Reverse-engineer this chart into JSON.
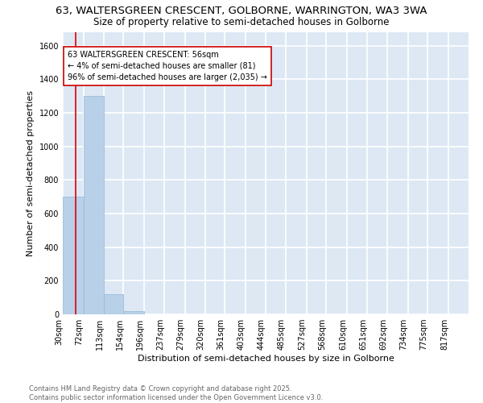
{
  "title_line1": "63, WALTERSGREEN CRESCENT, GOLBORNE, WARRINGTON, WA3 3WA",
  "title_line2": "Size of property relative to semi-detached houses in Golborne",
  "xlabel": "Distribution of semi-detached houses by size in Golborne",
  "ylabel": "Number of semi-detached properties",
  "bar_edges": [
    30,
    72,
    113,
    154,
    196,
    237,
    279,
    320,
    361,
    403,
    444,
    485,
    527,
    568,
    610,
    651,
    692,
    734,
    775,
    817,
    858
  ],
  "bar_heights": [
    700,
    1300,
    120,
    20,
    2,
    0,
    0,
    0,
    0,
    0,
    0,
    0,
    0,
    0,
    0,
    0,
    0,
    0,
    0,
    0
  ],
  "bar_color": "#b8d0e8",
  "bar_edgecolor": "#90b8d8",
  "property_size": 56,
  "red_line_color": "#dd0000",
  "annotation_text": "63 WALTERSGREEN CRESCENT: 56sqm\n← 4% of semi-detached houses are smaller (81)\n96% of semi-detached houses are larger (2,035) →",
  "annotation_box_edgecolor": "#cc0000",
  "annotation_box_facecolor": "#ffffff",
  "ylim": [
    0,
    1680
  ],
  "yticks": [
    0,
    200,
    400,
    600,
    800,
    1000,
    1200,
    1400,
    1600
  ],
  "background_color": "#dde8f4",
  "grid_color": "#ffffff",
  "fig_facecolor": "#ffffff",
  "footer_line1": "Contains HM Land Registry data © Crown copyright and database right 2025.",
  "footer_line2": "Contains public sector information licensed under the Open Government Licence v3.0.",
  "title_fontsize": 9.5,
  "subtitle_fontsize": 8.5,
  "axis_label_fontsize": 8,
  "tick_fontsize": 7,
  "annotation_fontsize": 7,
  "footer_fontsize": 6
}
